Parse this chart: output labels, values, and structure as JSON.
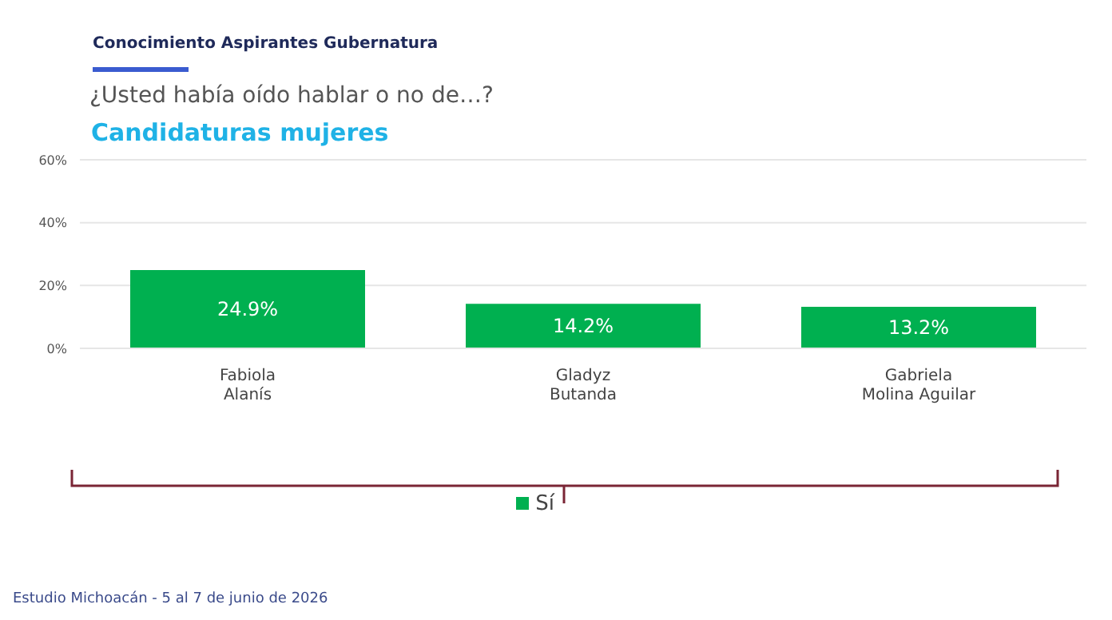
{
  "chart_data": {
    "type": "bar",
    "title": "Conocimiento Aspirantes Gubernatura",
    "subtitle": "¿Usted había oído hablar o no de…?",
    "annotations": [
      "Candidaturas mujeres",
      "Estudio Michoacán - 5 al 7 de junio de 2026"
    ],
    "categories": [
      "Fabiola\nAlanís",
      "Gladyz\nButanda",
      "Gabriela\nMolina Aguilar"
    ],
    "series": [
      {
        "name": "Sí",
        "color": "#00b050",
        "values": [
          24.9,
          14.2,
          13.2
        ],
        "value_labels": [
          "24.9%",
          "14.2%",
          "13.2%"
        ]
      }
    ],
    "ylim": [
      0,
      60
    ],
    "yticks": [
      {
        "value": 0,
        "label": "0%"
      },
      {
        "value": 20,
        "label": "20%"
      },
      {
        "value": 40,
        "label": "40%"
      },
      {
        "value": 60,
        "label": "60%"
      }
    ],
    "grid": "y",
    "legend": "bottom"
  }
}
